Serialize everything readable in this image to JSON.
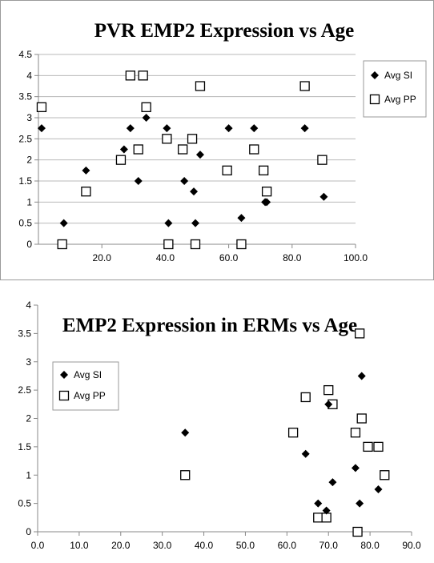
{
  "chart_data": [
    {
      "type": "scatter",
      "title": "PVR EMP2 Expression vs Age",
      "xlabel": "",
      "ylabel": "",
      "xlim": [
        0,
        100
      ],
      "ylim": [
        0,
        4.5
      ],
      "x_ticks": [
        {
          "v": 20,
          "label": "20.0"
        },
        {
          "v": 40,
          "label": "40.0"
        },
        {
          "v": 60,
          "label": "60.0"
        },
        {
          "v": 80,
          "label": "80.0"
        },
        {
          "v": 100,
          "label": "100.0"
        }
      ],
      "y_ticks": [
        {
          "v": 0,
          "label": "0"
        },
        {
          "v": 0.5,
          "label": "0.5"
        },
        {
          "v": 1,
          "label": "1"
        },
        {
          "v": 1.5,
          "label": "1.5"
        },
        {
          "v": 2,
          "label": "2"
        },
        {
          "v": 2.5,
          "label": "2.5"
        },
        {
          "v": 3,
          "label": "3"
        },
        {
          "v": 3.5,
          "label": "3.5"
        },
        {
          "v": 4,
          "label": "4"
        },
        {
          "v": 4.5,
          "label": "4.5"
        }
      ],
      "grid": "horizontal",
      "legend_position": "right",
      "series": [
        {
          "name": "Avg SI",
          "marker": "diamond-filled",
          "color": "#000000",
          "points": [
            [
              1,
              2.75
            ],
            [
              8,
              0.5
            ],
            [
              15,
              1.75
            ],
            [
              27,
              2.25
            ],
            [
              29,
              2.75
            ],
            [
              31.5,
              1.5
            ],
            [
              34,
              3
            ],
            [
              40.5,
              2.75
            ],
            [
              41,
              0.5
            ],
            [
              46,
              1.5
            ],
            [
              49,
              1.25
            ],
            [
              49.5,
              0.5
            ],
            [
              51,
              2.125
            ],
            [
              60,
              2.75
            ],
            [
              64,
              0.625
            ],
            [
              68,
              2.75
            ],
            [
              71.5,
              1
            ],
            [
              72,
              1
            ],
            [
              84,
              2.75
            ],
            [
              90,
              1.125
            ]
          ]
        },
        {
          "name": "Avg PP",
          "marker": "square-open",
          "color": "#000000",
          "points": [
            [
              1,
              3.25
            ],
            [
              7.5,
              0
            ],
            [
              15,
              1.25
            ],
            [
              26,
              2
            ],
            [
              29,
              4
            ],
            [
              31.5,
              2.25
            ],
            [
              33,
              4
            ],
            [
              34,
              3.25
            ],
            [
              40.5,
              2.5
            ],
            [
              41,
              0
            ],
            [
              45.5,
              2.25
            ],
            [
              48.5,
              2.5
            ],
            [
              49.5,
              0
            ],
            [
              51,
              3.75
            ],
            [
              59.5,
              1.75
            ],
            [
              64,
              0
            ],
            [
              68,
              2.25
            ],
            [
              71,
              1.75
            ],
            [
              72,
              1.25
            ],
            [
              84,
              3.75
            ],
            [
              89.5,
              2
            ]
          ]
        }
      ]
    },
    {
      "type": "scatter",
      "title": "EMP2 Expression in ERMs vs Age",
      "xlabel": "",
      "ylabel": "",
      "xlim": [
        0,
        90
      ],
      "ylim": [
        0,
        4
      ],
      "x_ticks": [
        {
          "v": 0,
          "label": "0.0"
        },
        {
          "v": 10,
          "label": "10.0"
        },
        {
          "v": 20,
          "label": "20.0"
        },
        {
          "v": 30,
          "label": "30.0"
        },
        {
          "v": 40,
          "label": "40.0"
        },
        {
          "v": 50,
          "label": "50.0"
        },
        {
          "v": 60,
          "label": "60.0"
        },
        {
          "v": 70,
          "label": "70.0"
        },
        {
          "v": 80,
          "label": "80.0"
        },
        {
          "v": 90,
          "label": "90.0"
        }
      ],
      "y_ticks": [
        {
          "v": 0,
          "label": "0"
        },
        {
          "v": 0.5,
          "label": "0.5"
        },
        {
          "v": 1,
          "label": "1"
        },
        {
          "v": 1.5,
          "label": "1.5"
        },
        {
          "v": 2,
          "label": "2"
        },
        {
          "v": 2.5,
          "label": "2.5"
        },
        {
          "v": 3,
          "label": "3"
        },
        {
          "v": 3.5,
          "label": "3.5"
        },
        {
          "v": 4,
          "label": "4"
        }
      ],
      "grid": "none",
      "legend_position": "left",
      "series": [
        {
          "name": "Avg SI",
          "marker": "diamond-filled",
          "color": "#000000",
          "points": [
            [
              35.5,
              1.75
            ],
            [
              64.5,
              1.375
            ],
            [
              67.5,
              0.5
            ],
            [
              69.5,
              0.375
            ],
            [
              70,
              2.25
            ],
            [
              71,
              0.875
            ],
            [
              76.5,
              1.125
            ],
            [
              77.5,
              0.5
            ],
            [
              78,
              2.75
            ],
            [
              82,
              0.75
            ]
          ]
        },
        {
          "name": "Avg PP",
          "marker": "square-open",
          "color": "#000000",
          "points": [
            [
              35.5,
              1
            ],
            [
              61.5,
              1.75
            ],
            [
              64.5,
              2.375
            ],
            [
              67.5,
              0.25
            ],
            [
              69.5,
              0.25
            ],
            [
              70,
              2.5
            ],
            [
              71,
              2.25
            ],
            [
              76.5,
              1.75
            ],
            [
              77,
              0
            ],
            [
              77.5,
              3.5
            ],
            [
              78,
              2
            ],
            [
              79.5,
              1.5
            ],
            [
              82,
              1.5
            ],
            [
              83.5,
              1
            ]
          ]
        }
      ]
    }
  ]
}
